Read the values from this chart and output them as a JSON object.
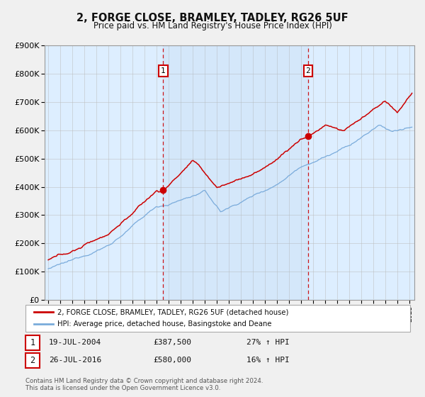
{
  "title": "2, FORGE CLOSE, BRAMLEY, TADLEY, RG26 5UF",
  "subtitle": "Price paid vs. HM Land Registry's House Price Index (HPI)",
  "legend_line1": "2, FORGE CLOSE, BRAMLEY, TADLEY, RG26 5UF (detached house)",
  "legend_line2": "HPI: Average price, detached house, Basingstoke and Deane",
  "transaction1_date": "19-JUL-2004",
  "transaction1_price": "£387,500",
  "transaction1_hpi": "27% ↑ HPI",
  "transaction2_date": "26-JUL-2016",
  "transaction2_price": "£580,000",
  "transaction2_hpi": "16% ↑ HPI",
  "footnote1": "Contains HM Land Registry data © Crown copyright and database right 2024.",
  "footnote2": "This data is licensed under the Open Government Licence v3.0.",
  "red_line_color": "#cc0000",
  "blue_line_color": "#7aabdb",
  "background_color": "#ddeeff",
  "grid_color": "#bbbbbb",
  "vline_color": "#cc0000",
  "marker_color": "#cc0000",
  "transaction1_x": 2004.548,
  "transaction1_y": 387500,
  "transaction2_x": 2016.573,
  "transaction2_y": 580000,
  "ylim": [
    0,
    900000
  ],
  "xlim_start": 1994.7,
  "xlim_end": 2025.4
}
